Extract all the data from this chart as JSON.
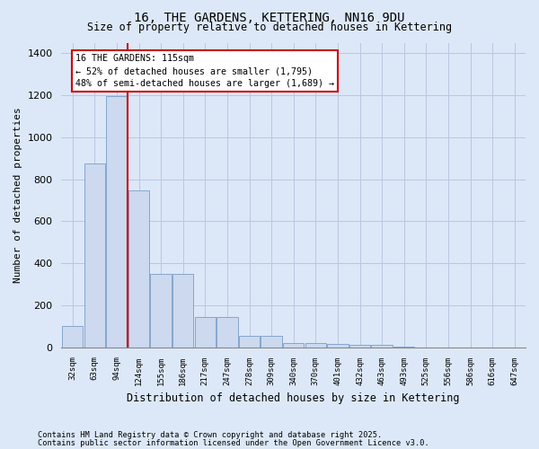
{
  "title1": "16, THE GARDENS, KETTERING, NN16 9DU",
  "title2": "Size of property relative to detached houses in Kettering",
  "xlabel": "Distribution of detached houses by size in Kettering",
  "ylabel": "Number of detached properties",
  "bar_color": "#ccd9ee",
  "bar_edge_color": "#7a9cc8",
  "grid_color": "#b8c8e0",
  "bg_color": "#dce8f8",
  "vline_x": 3,
  "vline_color": "#cc0000",
  "categories": [
    "32sqm",
    "63sqm",
    "94sqm",
    "124sqm",
    "155sqm",
    "186sqm",
    "217sqm",
    "247sqm",
    "278sqm",
    "309sqm",
    "340sqm",
    "370sqm",
    "401sqm",
    "432sqm",
    "463sqm",
    "493sqm",
    "525sqm",
    "556sqm",
    "586sqm",
    "616sqm",
    "647sqm"
  ],
  "bar_heights": [
    100,
    875,
    1195,
    745,
    350,
    350,
    145,
    145,
    55,
    55,
    20,
    20,
    15,
    10,
    10,
    5,
    0,
    0,
    0,
    0,
    0
  ],
  "ylim": [
    0,
    1450
  ],
  "yticks": [
    0,
    200,
    400,
    600,
    800,
    1000,
    1200,
    1400
  ],
  "annotation_text": "16 THE GARDENS: 115sqm\n← 52% of detached houses are smaller (1,795)\n48% of semi-detached houses are larger (1,689) →",
  "annotation_box_color": "#ffffff",
  "annotation_box_edge": "#cc0000",
  "footer1": "Contains HM Land Registry data © Crown copyright and database right 2025.",
  "footer2": "Contains public sector information licensed under the Open Government Licence v3.0."
}
